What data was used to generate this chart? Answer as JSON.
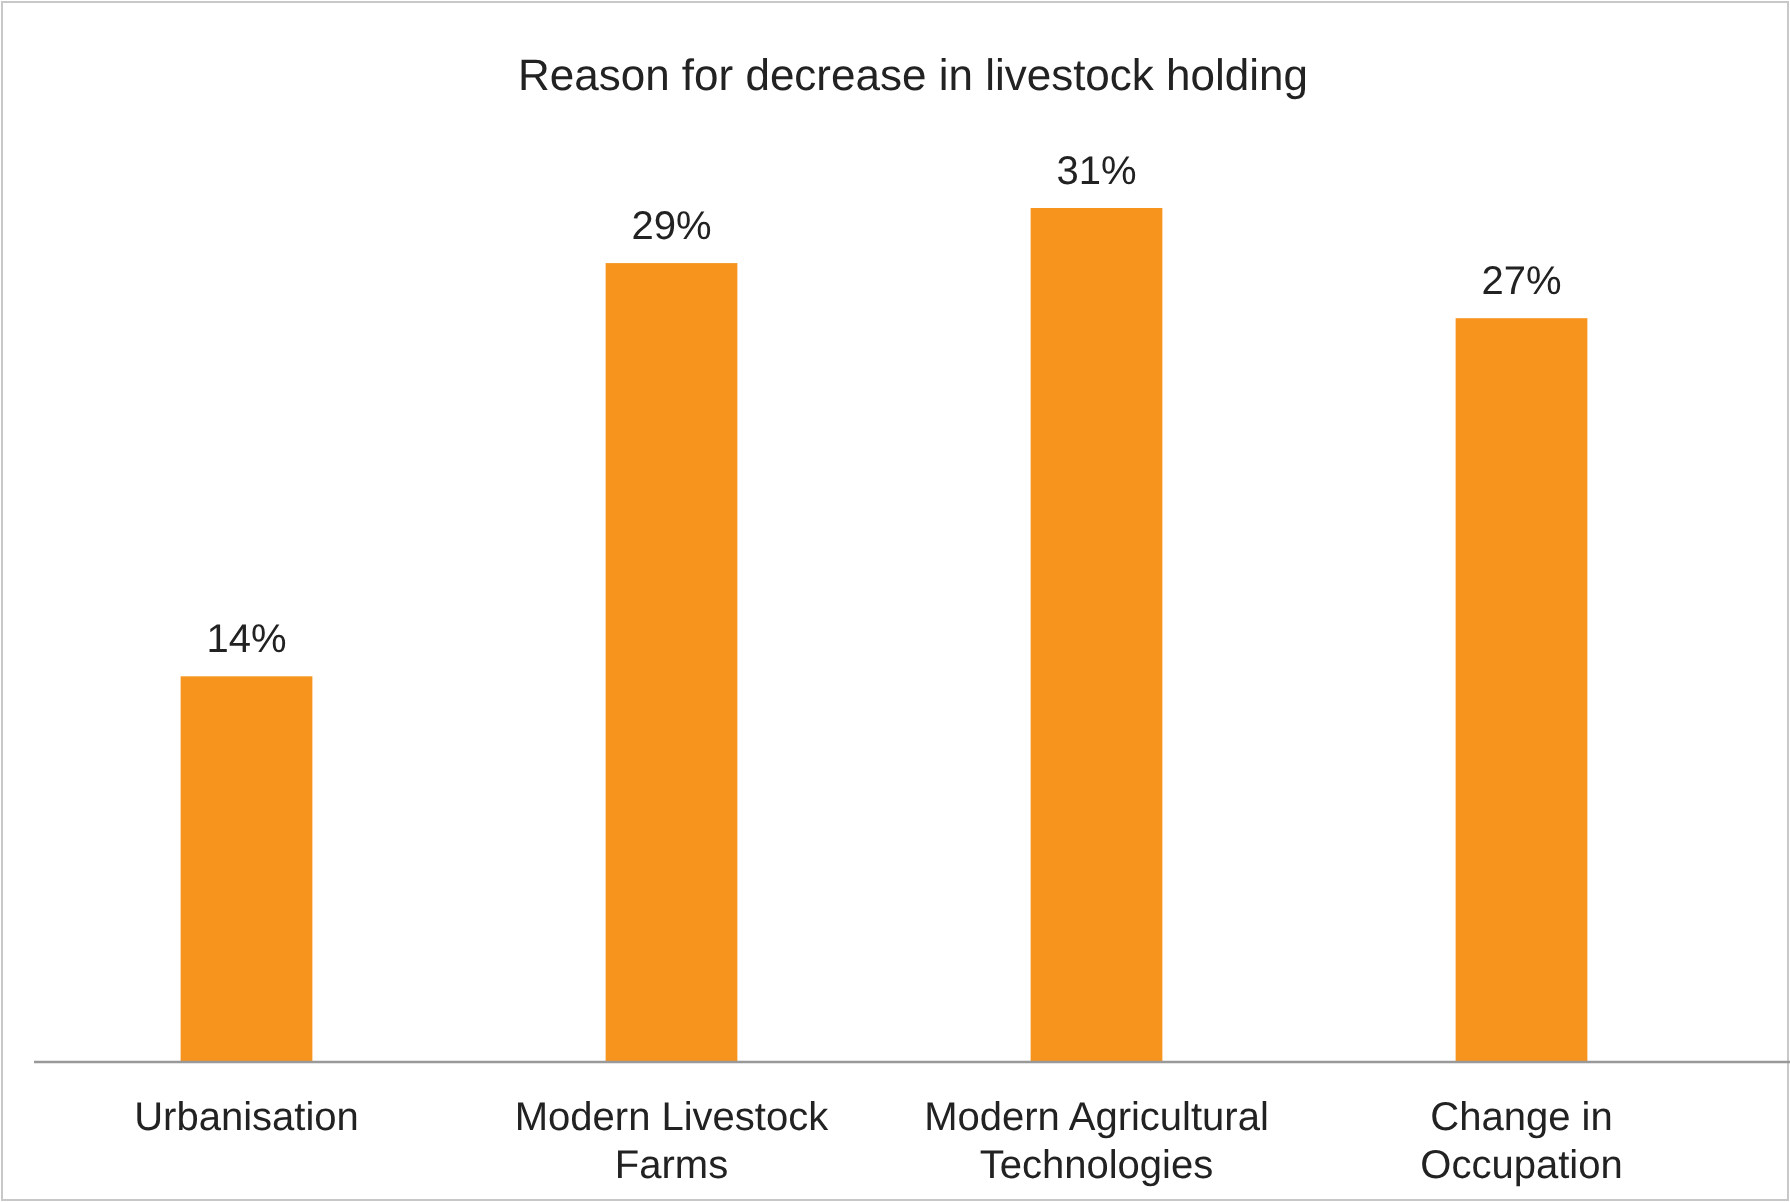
{
  "chart_data": {
    "type": "bar",
    "title": "Reason for decrease in livestock holding",
    "categories": [
      "Urbanisation",
      "Modern Livestock Farms",
      "Modern Agricultural Technologies",
      "Change in Occupation"
    ],
    "values": [
      14,
      29,
      31,
      27
    ],
    "value_labels": [
      "14%",
      "29%",
      "31%",
      "27%"
    ],
    "color": "#f7941d"
  }
}
